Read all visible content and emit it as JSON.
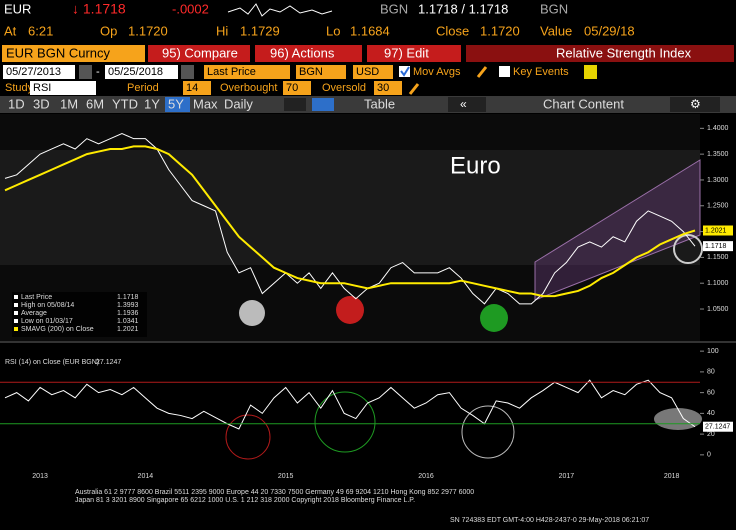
{
  "header": {
    "ticker": "EUR",
    "arrow_price": "↓ 1.1718",
    "change": "-.0002",
    "currency": "BGN",
    "bid_ask": "1.1718 / 1.1718",
    "currency2": "BGN"
  },
  "quote": {
    "at_label": "At",
    "at": "6:21",
    "op_label": "Op",
    "op": "1.1720",
    "hi_label": "Hi",
    "hi": "1.1729",
    "lo_label": "Lo",
    "lo": "1.1684",
    "close_label": "Close",
    "close": "1.1720",
    "value_label": "Value",
    "value": "05/29/18"
  },
  "menu": {
    "security": "EUR BGN Curncy",
    "compare": "95) Compare",
    "actions": "96) Actions",
    "edit": "97) Edit",
    "panel": "Relative Strength Index"
  },
  "settings": {
    "start": "05/27/2013",
    "end": "05/25/2018",
    "field": "Last Price",
    "currency": "BGN",
    "fx": "USD",
    "mov_avgs": "Mov Avgs",
    "key_events": "Key Events"
  },
  "study": {
    "label": "Study",
    "name": "RSI",
    "period_label": "Period",
    "period": 14,
    "overbought_label": "Overbought",
    "overbought": 70,
    "oversold_label": "Oversold",
    "oversold": 30
  },
  "toolbar": {
    "periods": [
      "1D",
      "3D",
      "1M",
      "6M",
      "YTD",
      "1Y",
      "5Y",
      "Max"
    ],
    "frequency": "Daily",
    "table": "Table",
    "chart_content": "Chart Content"
  },
  "chart_data": [
    {
      "type": "line",
      "title": "Euro",
      "series": [
        {
          "name": "Last Price",
          "color": "#ffffff",
          "values": [
            1.303,
            1.31,
            1.33,
            1.35,
            1.36,
            1.37,
            1.36,
            1.38,
            1.37,
            1.38,
            1.39,
            1.38,
            1.38,
            1.36,
            1.32,
            1.29,
            1.26,
            1.25,
            1.24,
            1.16,
            1.12,
            1.13,
            1.08,
            1.1,
            1.12,
            1.1,
            1.12,
            1.09,
            1.12,
            1.09,
            1.07,
            1.09,
            1.1,
            1.13,
            1.14,
            1.12,
            1.12,
            1.12,
            1.13,
            1.11,
            1.08,
            1.06,
            1.09,
            1.08,
            1.06,
            1.06,
            1.08,
            1.12,
            1.14,
            1.17,
            1.18,
            1.17,
            1.19,
            1.18,
            1.22,
            1.24,
            1.23,
            1.22,
            1.2,
            1.1718
          ]
        },
        {
          "name": "SMAVG (200) on Close",
          "color": "#ffeb00",
          "values": [
            1.28,
            1.29,
            1.3,
            1.31,
            1.32,
            1.33,
            1.34,
            1.35,
            1.355,
            1.36,
            1.36,
            1.365,
            1.365,
            1.36,
            1.35,
            1.33,
            1.31,
            1.28,
            1.25,
            1.22,
            1.19,
            1.17,
            1.15,
            1.13,
            1.12,
            1.11,
            1.105,
            1.1,
            1.1,
            1.1,
            1.095,
            1.09,
            1.095,
            1.1,
            1.1,
            1.1,
            1.1,
            1.1,
            1.1,
            1.105,
            1.1,
            1.095,
            1.09,
            1.085,
            1.08,
            1.08,
            1.075,
            1.075,
            1.08,
            1.085,
            1.095,
            1.11,
            1.12,
            1.135,
            1.15,
            1.16,
            1.175,
            1.185,
            1.195,
            1.2021
          ]
        }
      ],
      "stats": [
        {
          "label": "High on 05/08/14",
          "value": 1.3993
        },
        {
          "label": "Average",
          "value": 1.1936
        },
        {
          "label": "Low on 01/03/17",
          "value": 1.0341
        }
      ],
      "ylim": [
        0.99,
        1.42
      ],
      "yticks": [
        {
          "value": 1.05,
          "label": "1.0500"
        },
        {
          "value": 1.1,
          "label": "1.1000"
        },
        {
          "value": 1.15,
          "label": "1.1500"
        },
        {
          "value": 1.2,
          "label": "1.2000"
        },
        {
          "value": 1.25,
          "label": "1.2500"
        },
        {
          "value": 1.3,
          "label": "1.3000"
        },
        {
          "value": 1.35,
          "label": "1.3500"
        },
        {
          "value": 1.4,
          "label": "1.4000"
        }
      ]
    },
    {
      "type": "line",
      "title": "RSI (14) on Close (EUR BGN)",
      "categories": [
        null,
        null,
        null,
        "2013",
        null,
        null,
        null,
        null,
        null,
        null,
        null,
        null,
        "2014",
        null,
        null,
        null,
        null,
        null,
        null,
        null,
        null,
        null,
        null,
        null,
        "2015",
        null,
        null,
        null,
        null,
        null,
        null,
        null,
        null,
        null,
        null,
        null,
        "2016",
        null,
        null,
        null,
        null,
        null,
        null,
        null,
        null,
        null,
        null,
        null,
        "2017",
        null,
        null,
        null,
        null,
        null,
        null,
        null,
        null,
        "2018",
        null,
        null
      ],
      "series": [
        {
          "name": "RSI",
          "color": "#ffffff",
          "values": [
            55,
            60,
            52,
            65,
            58,
            62,
            55,
            68,
            60,
            63,
            58,
            65,
            55,
            45,
            40,
            38,
            35,
            42,
            36,
            30,
            25,
            48,
            40,
            55,
            65,
            50,
            60,
            45,
            62,
            40,
            35,
            50,
            55,
            65,
            55,
            45,
            50,
            58,
            60,
            45,
            38,
            30,
            52,
            50,
            45,
            55,
            62,
            70,
            65,
            60,
            72,
            55,
            62,
            58,
            68,
            72,
            60,
            55,
            35,
            27.1247
          ]
        }
      ],
      "ylim": [
        -4,
        104
      ],
      "yticks": [
        0,
        20,
        40,
        60,
        80,
        100
      ]
    }
  ],
  "footer": [
    "Australia 61 2 9777 8600 Brazil 5511 2395 9000 Europe 44 20 7330 7500 Germany 49 69 9204 1210 Hong Kong 852 2977 6000",
    "Japan 81 3 3201 8900 Singapore 65 6212 1000 U.S. 1 212 318 2000 Copyright 2018 Bloomberg Finance L.P.",
    "SN 724383 EDT GMT-4:00 H428-2437-0 29-May-2018 06:21:07"
  ]
}
